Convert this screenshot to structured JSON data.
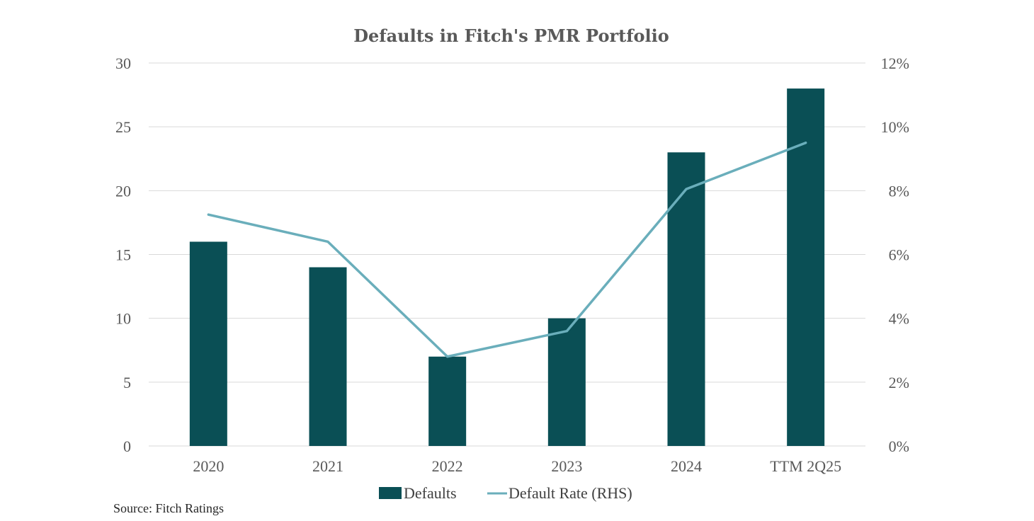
{
  "chart_data": {
    "type": "bar",
    "title": "Defaults in Fitch's PMR Portfolio",
    "categories": [
      "2020",
      "2021",
      "2022",
      "2023",
      "2024",
      "TTM 2Q25"
    ],
    "series": [
      {
        "name": "Defaults",
        "kind": "bar",
        "axis": "left",
        "values": [
          16,
          14,
          7,
          10,
          23,
          28
        ],
        "color": "#0a4f55"
      },
      {
        "name": "Default Rate (RHS)",
        "kind": "line",
        "axis": "right",
        "values": [
          7.25,
          6.4,
          2.8,
          3.6,
          8.05,
          9.5
        ],
        "color": "#6aaebb"
      }
    ],
    "ylim": [
      0,
      30
    ],
    "yticks": [
      "0",
      "5",
      "10",
      "15",
      "20",
      "25",
      "30"
    ],
    "ylim_right": [
      0,
      12
    ],
    "yticks_right": [
      "0%",
      "2%",
      "4%",
      "6%",
      "8%",
      "10%",
      "12%"
    ],
    "grid": true,
    "legend": "bottom-center"
  },
  "source": "Source: Fitch Ratings"
}
